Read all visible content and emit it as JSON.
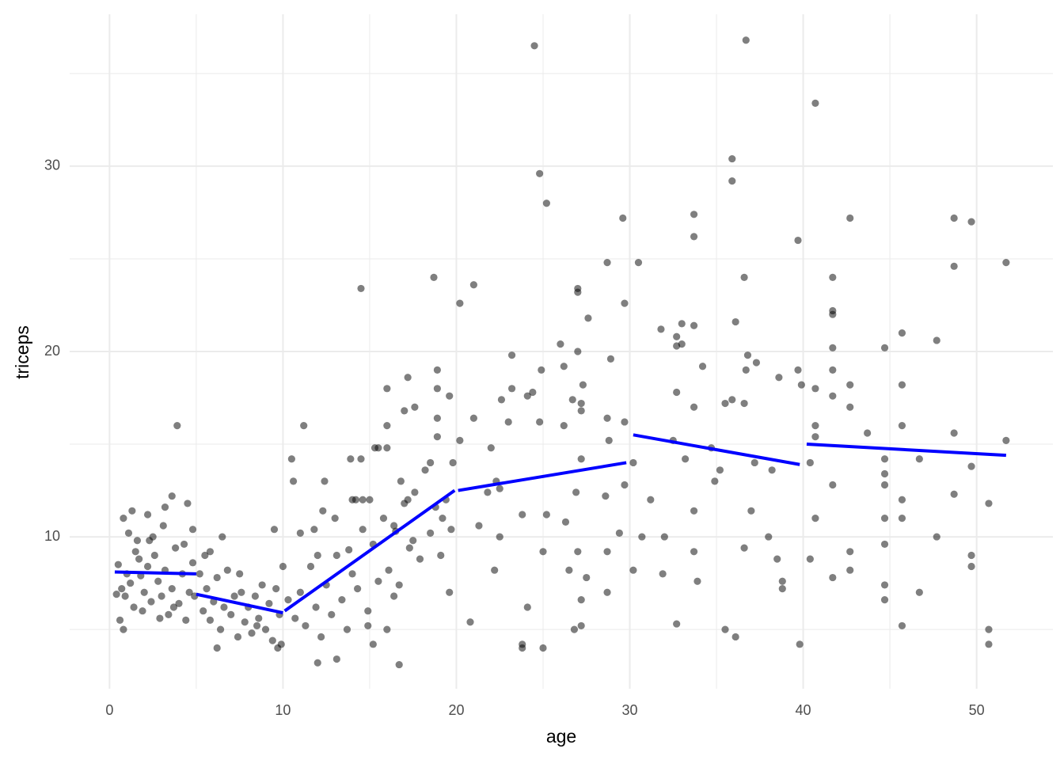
{
  "chart_data": {
    "type": "scatter",
    "x_label": "age",
    "y_label": "triceps",
    "xlim": [
      -2.3,
      54.4
    ],
    "ylim": [
      1.8,
      38.2
    ],
    "xticks": [
      0,
      10,
      20,
      30,
      40,
      50
    ],
    "yticks": [
      10,
      20,
      30
    ],
    "grid": true,
    "series": [
      {
        "type": "scatter",
        "color": "#000000",
        "x": [
          24.5,
          36.7,
          40.7,
          24.8,
          25.2,
          35.9,
          35.9,
          29.6,
          33.7,
          33.7,
          42.7,
          48.7,
          49.7,
          39.7,
          28.7,
          30.5,
          51.7,
          48.7,
          36.6,
          41.7,
          18.7,
          21.0,
          14.5,
          27.0,
          27.0,
          20.2,
          29.7,
          41.7,
          41.7,
          27.6,
          36.1,
          33.0,
          33.7,
          31.8,
          45.7,
          32.7,
          47.7,
          33.0,
          26.0,
          32.7,
          41.7,
          44.7,
          27.0,
          23.2,
          36.8,
          28.9,
          37.3,
          34.2,
          26.2,
          18.9,
          24.9,
          36.7,
          39.7,
          41.7,
          38.6,
          17.2,
          40.7,
          39.9,
          27.3,
          42.7,
          45.7,
          16.0,
          18.9,
          23.2,
          24.4,
          32.7,
          19.6,
          24.1,
          41.7,
          22.6,
          35.9,
          26.7,
          35.5,
          36.6,
          27.2,
          33.7,
          42.7,
          17.6,
          17.0,
          27.2,
          18.9,
          21.0,
          28.7,
          23.0,
          24.8,
          29.7,
          26.2,
          11.2,
          3.9,
          16.0,
          40.7,
          45.7,
          18.9,
          40.7,
          48.7,
          43.7,
          20.2,
          28.8,
          32.5,
          51.7,
          15.3,
          15.5,
          16.0,
          22.0,
          34.7,
          27.2,
          14.5,
          10.5,
          13.9,
          33.2,
          44.7,
          46.7,
          18.5,
          30.2,
          19.8,
          37.2,
          35.2,
          38.2,
          40.4,
          44.7,
          49.7,
          16.8,
          10.6,
          12.4,
          22.3,
          34.9,
          41.7,
          44.7,
          29.7,
          21.8,
          26.9,
          3.6,
          48.7,
          28.6,
          22.5,
          17.2,
          31.2,
          14.2,
          14.6,
          45.7,
          3.2,
          4.5,
          50.7,
          12.3,
          33.7,
          1.3,
          2.2,
          25.2,
          23.8,
          29.4,
          37.0,
          0.8,
          19.2,
          44.7,
          45.7,
          40.7,
          26.3,
          21.3,
          9.5,
          4.8,
          11.8,
          16.5,
          30.7,
          32.0,
          47.7,
          38.0,
          22.5,
          27.0,
          33.7,
          36.6,
          44.7,
          49.7,
          42.7,
          25.0,
          28.7,
          13.8,
          1.6,
          2.3,
          5.8,
          49.7,
          40.4,
          38.5,
          42.7,
          30.2,
          31.9,
          22.2,
          26.5,
          27.5,
          38.8,
          41.7,
          33.9,
          44.7,
          38.8,
          46.7,
          28.7,
          19.6,
          44.7,
          27.2,
          16.4,
          24.1,
          20.8,
          32.7,
          45.7,
          50.7,
          35.5,
          27.2,
          26.8,
          36.1,
          14.9,
          23.8,
          23.8,
          25.0,
          39.8,
          50.7,
          16.7,
          12.0,
          13.1,
          6.2,
          15.2,
          9.7,
          0.5,
          0.7,
          0.9,
          1.0,
          1.2,
          1.4,
          1.5,
          1.7,
          1.9,
          2.0,
          2.2,
          2.4,
          2.6,
          2.8,
          3.0,
          3.2,
          3.4,
          3.6,
          3.8,
          4.0,
          4.2,
          4.4,
          4.6,
          4.8,
          0.4,
          0.8,
          1.1,
          2.5,
          3.1,
          4.3,
          0.6,
          2.9,
          1.8,
          3.7,
          4.9,
          5.2,
          5.4,
          5.6,
          5.8,
          6.0,
          6.2,
          6.4,
          6.6,
          6.8,
          7.0,
          7.2,
          7.4,
          7.6,
          7.8,
          8.0,
          8.2,
          8.4,
          8.6,
          8.8,
          9.0,
          9.2,
          9.4,
          9.6,
          9.8,
          10.0,
          9.9,
          5.5,
          6.5,
          7.5,
          8.5,
          10.3,
          10.7,
          11.0,
          11.3,
          11.6,
          11.9,
          12.2,
          12.5,
          12.8,
          13.1,
          13.4,
          13.7,
          14.0,
          14.3,
          14.6,
          14.9,
          15.2,
          15.5,
          15.8,
          16.1,
          16.4,
          16.7,
          17.0,
          17.3,
          17.6,
          17.9,
          18.2,
          18.5,
          18.8,
          19.1,
          19.4,
          19.7,
          13.0,
          15.0,
          11.0,
          12.0,
          14.0,
          16.0,
          17.5
        ],
        "y": [
          36.5,
          36.8,
          33.4,
          29.6,
          28.0,
          30.4,
          29.2,
          27.2,
          27.4,
          26.2,
          27.2,
          27.2,
          27.0,
          26.0,
          24.8,
          24.8,
          24.8,
          24.6,
          24.0,
          24.0,
          24.0,
          23.6,
          23.4,
          23.4,
          23.2,
          22.6,
          22.6,
          22.2,
          22.0,
          21.8,
          21.6,
          21.5,
          21.4,
          21.2,
          21.0,
          20.8,
          20.6,
          20.4,
          20.4,
          20.3,
          20.2,
          20.2,
          20.0,
          19.8,
          19.8,
          19.6,
          19.4,
          19.2,
          19.2,
          19.0,
          19.0,
          19.0,
          19.0,
          19.0,
          18.6,
          18.6,
          18.0,
          18.2,
          18.2,
          18.2,
          18.2,
          18.0,
          18.0,
          18.0,
          17.8,
          17.8,
          17.6,
          17.6,
          17.6,
          17.4,
          17.4,
          17.4,
          17.2,
          17.2,
          17.2,
          17.0,
          17.0,
          17.0,
          16.8,
          16.8,
          16.4,
          16.4,
          16.4,
          16.2,
          16.2,
          16.2,
          16.0,
          16.0,
          16.0,
          16.0,
          16.0,
          16.0,
          15.4,
          15.4,
          15.6,
          15.6,
          15.2,
          15.2,
          15.2,
          15.2,
          14.8,
          14.8,
          14.8,
          14.8,
          14.8,
          14.2,
          14.2,
          14.2,
          14.2,
          14.2,
          14.2,
          14.2,
          14.0,
          14.0,
          14.0,
          14.0,
          13.6,
          13.6,
          14.0,
          13.4,
          13.8,
          13.0,
          13.0,
          13.0,
          13.0,
          13.0,
          12.8,
          12.8,
          12.8,
          12.4,
          12.4,
          12.2,
          12.3,
          12.2,
          12.6,
          12.0,
          12.0,
          12.0,
          12.0,
          12.0,
          11.6,
          11.8,
          11.8,
          11.4,
          11.4,
          11.4,
          11.2,
          11.2,
          11.2,
          10.2,
          11.4,
          11.0,
          11.0,
          11.0,
          11.0,
          11.0,
          10.8,
          10.6,
          10.4,
          10.4,
          10.4,
          10.3,
          10.0,
          10.0,
          10.0,
          10.0,
          10.0,
          9.2,
          9.2,
          9.4,
          9.6,
          9.0,
          9.2,
          9.2,
          9.2,
          9.3,
          9.8,
          9.8,
          9.2,
          8.4,
          8.8,
          8.8,
          8.2,
          8.2,
          8.0,
          8.2,
          8.2,
          7.8,
          7.6,
          7.8,
          7.6,
          7.4,
          7.2,
          7.0,
          7.0,
          7.0,
          6.6,
          6.6,
          6.8,
          6.2,
          5.4,
          5.3,
          5.2,
          5.0,
          5.0,
          5.2,
          5.0,
          4.6,
          5.2,
          4.2,
          4.0,
          4.0,
          4.2,
          4.2,
          3.1,
          3.2,
          3.4,
          4.0,
          4.2,
          4.0,
          8.5,
          7.2,
          6.8,
          8.0,
          7.5,
          6.2,
          9.2,
          8.8,
          6.0,
          7.0,
          8.4,
          6.5,
          9.0,
          7.6,
          6.8,
          8.2,
          5.8,
          7.2,
          9.4,
          6.4,
          8.0,
          5.5,
          7.0,
          8.6,
          6.9,
          5.0,
          10.2,
          10.0,
          10.6,
          9.6,
          5.5,
          5.6,
          7.9,
          6.2,
          6.8,
          8.0,
          6.0,
          7.2,
          5.5,
          6.5,
          7.8,
          5.0,
          6.2,
          8.2,
          5.8,
          6.8,
          4.6,
          7.0,
          5.4,
          6.2,
          4.8,
          6.8,
          5.6,
          7.4,
          5.0,
          6.4,
          4.4,
          7.2,
          5.8,
          8.4,
          4.2,
          9.0,
          10.0,
          8.0,
          5.2,
          6.6,
          5.6,
          7.0,
          5.2,
          8.4,
          6.2,
          4.6,
          7.4,
          5.8,
          9.0,
          6.6,
          5.0,
          8.0,
          7.2,
          10.4,
          6.0,
          9.6,
          7.6,
          11.0,
          8.2,
          10.6,
          7.4,
          11.8,
          9.4,
          12.4,
          8.8,
          13.6,
          10.2,
          11.6,
          9.0,
          12.0,
          10.4,
          11.0,
          12.0,
          10.2,
          9.0,
          12.0,
          5.0,
          9.8
        ]
      },
      {
        "type": "line",
        "color": "#0000ff",
        "x": [
          0.3,
          5.0,
          null,
          5.0,
          10.0,
          null,
          10.1,
          19.9,
          null,
          20.1,
          29.8,
          null,
          30.2,
          39.8,
          null,
          40.2,
          51.7
        ],
        "y": [
          8.1,
          8.0,
          null,
          6.9,
          5.9,
          null,
          6.0,
          12.5,
          null,
          12.5,
          14.0,
          null,
          15.5,
          13.9,
          null,
          15.0,
          14.4
        ]
      }
    ]
  }
}
